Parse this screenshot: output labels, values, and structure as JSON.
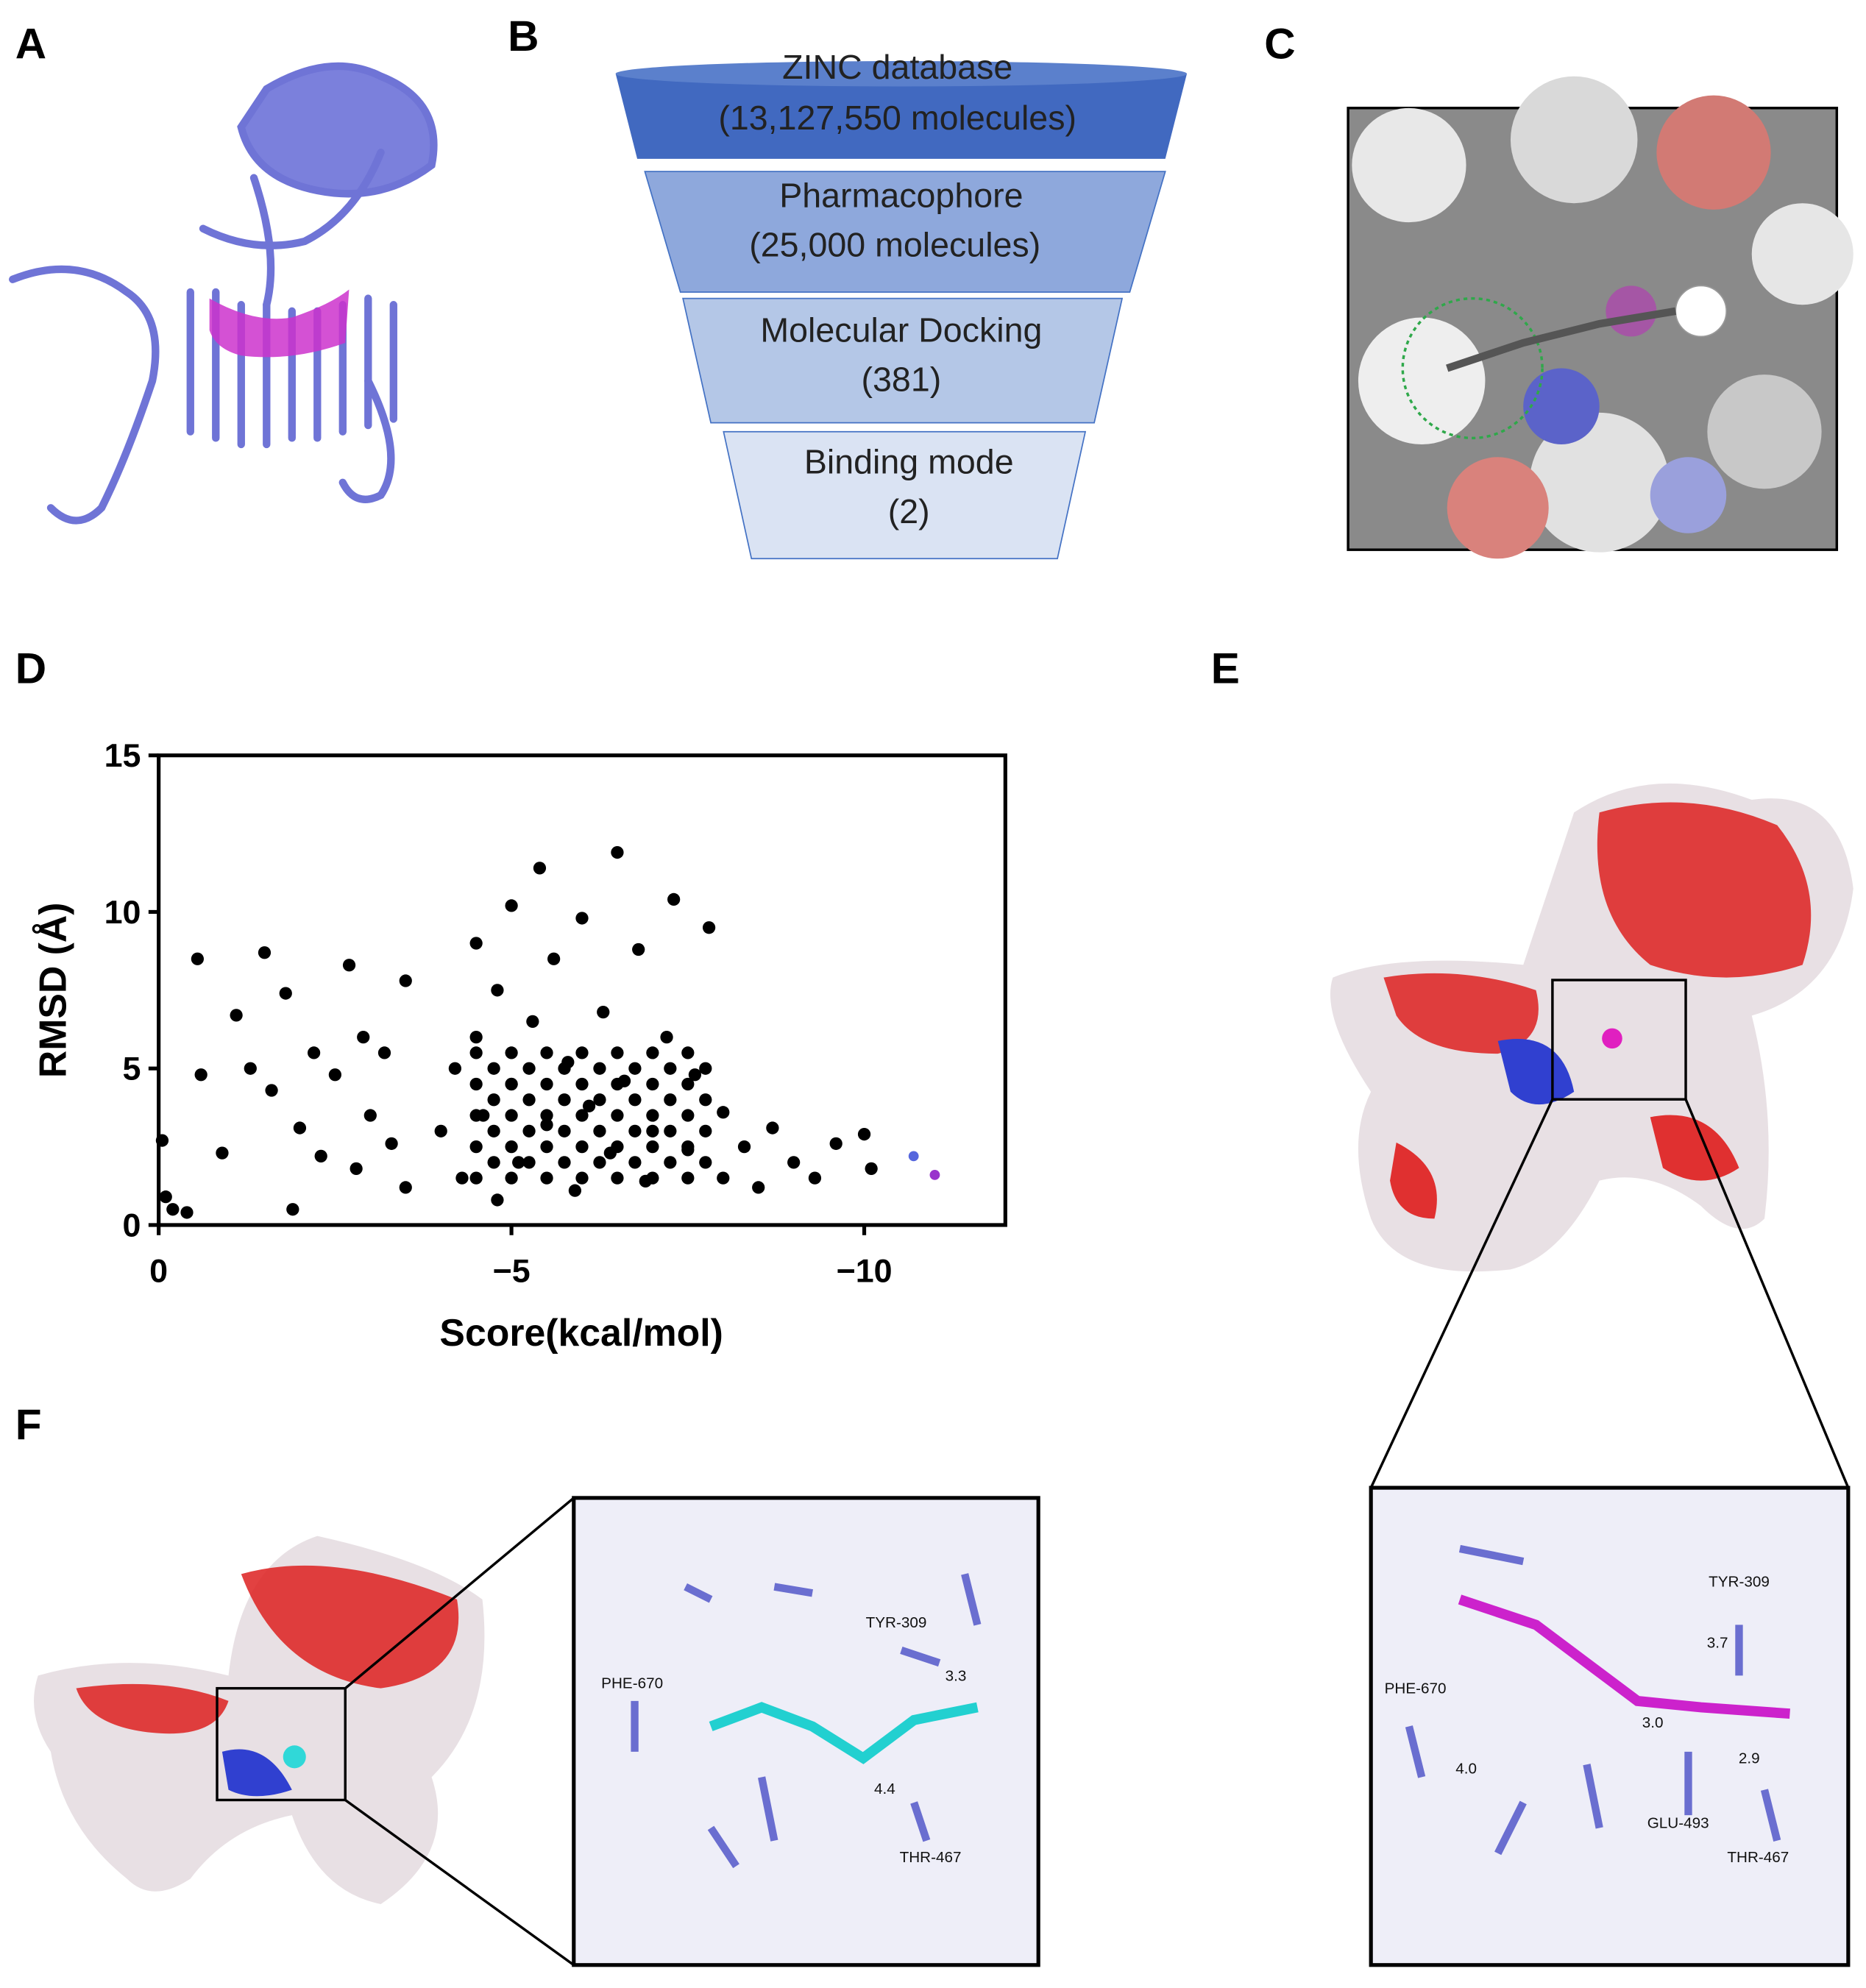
{
  "panel_labels": [
    "A",
    "B",
    "C",
    "D",
    "E",
    "F"
  ],
  "funnel": {
    "steps": [
      {
        "title": "ZINC database",
        "count": "(13,127,550 molecules)"
      },
      {
        "title": "Pharmacophore",
        "count": "(25,000 molecules)"
      },
      {
        "title": "Molecular Docking",
        "count": "(381)"
      },
      {
        "title": "Binding mode",
        "count": "(2)"
      }
    ]
  },
  "chart_data": {
    "type": "scatter",
    "x_label": "Score(kcal/mol)",
    "y_label": "RMSD (Å)",
    "xlim": [
      0,
      -12
    ],
    "ylim": [
      0,
      15
    ],
    "xticks": [
      0,
      {
        "value": -5,
        "label": "−5"
      },
      {
        "value": -10,
        "label": "−10"
      }
    ],
    "yticks": [
      0,
      5,
      10,
      15
    ],
    "series": [
      {
        "color": "#000000",
        "x": [
          -0.05,
          -0.1,
          -0.2,
          -0.4,
          -0.55,
          -0.6,
          -0.9,
          -1.1,
          -1.3,
          -1.5,
          -1.6,
          -1.8,
          -1.9,
          -2.0,
          -2.2,
          -2.3,
          -2.5,
          -2.7,
          -2.8,
          -2.9,
          -3.0,
          -3.2,
          -3.3,
          -3.5,
          -3.5,
          -4,
          -4.2,
          -4.3,
          -4.5,
          -4.5,
          -4.6,
          -4.8,
          -4.8,
          -5,
          -5,
          -5.1,
          -5.3,
          -5.4,
          -5.5,
          -5.6,
          -5.8,
          -5.9,
          -6,
          -6.1,
          -6.3,
          -6.4,
          -6.5,
          -6.6,
          -6.8,
          -6.9,
          -7,
          -7.2,
          -7.3,
          -7.5,
          -7.6,
          -7.8,
          -8,
          -8,
          -8.3,
          -8.5,
          -8.7,
          -9,
          -9.3,
          -9.6,
          -10,
          -10.1,
          -4.5,
          -4.5,
          -4.5,
          -4.5,
          -4.5,
          -5,
          -5,
          -5,
          -5,
          -5,
          -5.5,
          -5.5,
          -5.5,
          -5.5,
          -5.5,
          -6,
          -6,
          -6,
          -6,
          -6,
          -6.5,
          -6.5,
          -6.5,
          -6.5,
          -6.5,
          -7,
          -7,
          -7,
          -7,
          -7,
          -7.5,
          -7.5,
          -7.5,
          -7.5,
          -7.5,
          -4.75,
          -4.75,
          -4.75,
          -4.75,
          -5.25,
          -5.25,
          -5.25,
          -5.25,
          -5.75,
          -5.75,
          -5.75,
          -5.75,
          -6.25,
          -6.25,
          -6.25,
          -6.25,
          -6.75,
          -6.75,
          -6.75,
          -6.75,
          -7.25,
          -7.25,
          -7.25,
          -7.25,
          -7.75,
          -7.75,
          -7.75,
          -7.75
        ],
        "values": [
          2.7,
          0.9,
          0.5,
          0.4,
          8.5,
          4.8,
          2.3,
          6.7,
          5.0,
          8.7,
          4.3,
          7.4,
          0.5,
          3.1,
          5.5,
          2.2,
          4.8,
          8.3,
          1.8,
          6.0,
          3.5,
          5.5,
          2.6,
          7.8,
          1.2,
          3,
          5,
          1.5,
          6,
          9,
          3.5,
          7.5,
          0.8,
          4.5,
          10.2,
          2,
          6.5,
          11.4,
          3.2,
          8.5,
          5.2,
          1.1,
          9.8,
          3.8,
          6.8,
          2.3,
          11.9,
          4.6,
          8.8,
          1.4,
          3,
          6,
          10.4,
          2.4,
          4.8,
          9.5,
          1.5,
          3.6,
          2.5,
          1.2,
          3.1,
          2,
          1.5,
          2.6,
          2.9,
          1.8,
          1.5,
          2.5,
          3.5,
          4.5,
          5.5,
          1.5,
          2.5,
          3.5,
          4.5,
          5.5,
          1.5,
          2.5,
          3.5,
          4.5,
          5.5,
          1.5,
          2.5,
          3.5,
          4.5,
          5.5,
          1.5,
          2.5,
          3.5,
          4.5,
          5.5,
          1.5,
          2.5,
          3.5,
          4.5,
          5.5,
          1.5,
          2.5,
          3.5,
          4.5,
          5.5,
          2,
          3,
          4,
          5,
          2,
          3,
          4,
          5,
          2,
          3,
          4,
          5,
          2,
          3,
          4,
          5,
          2,
          3,
          4,
          5,
          2,
          3,
          4,
          5,
          2,
          3,
          4,
          5
        ]
      },
      {
        "color": "#5566dd",
        "x": [
          -10.7
        ],
        "values": [
          2.2
        ]
      },
      {
        "color": "#9933cc",
        "x": [
          -11
        ],
        "values": [
          1.6
        ]
      }
    ]
  },
  "panel_e": {
    "labels": [
      "TYR-309",
      "3.7",
      "PHE-670",
      "3.0",
      "4.0",
      "2.9",
      "GLU-493",
      "THR-467"
    ]
  },
  "panel_f": {
    "labels": [
      "TYR-309",
      "3.3",
      "PHE-670",
      "4.4",
      "THR-467"
    ]
  }
}
